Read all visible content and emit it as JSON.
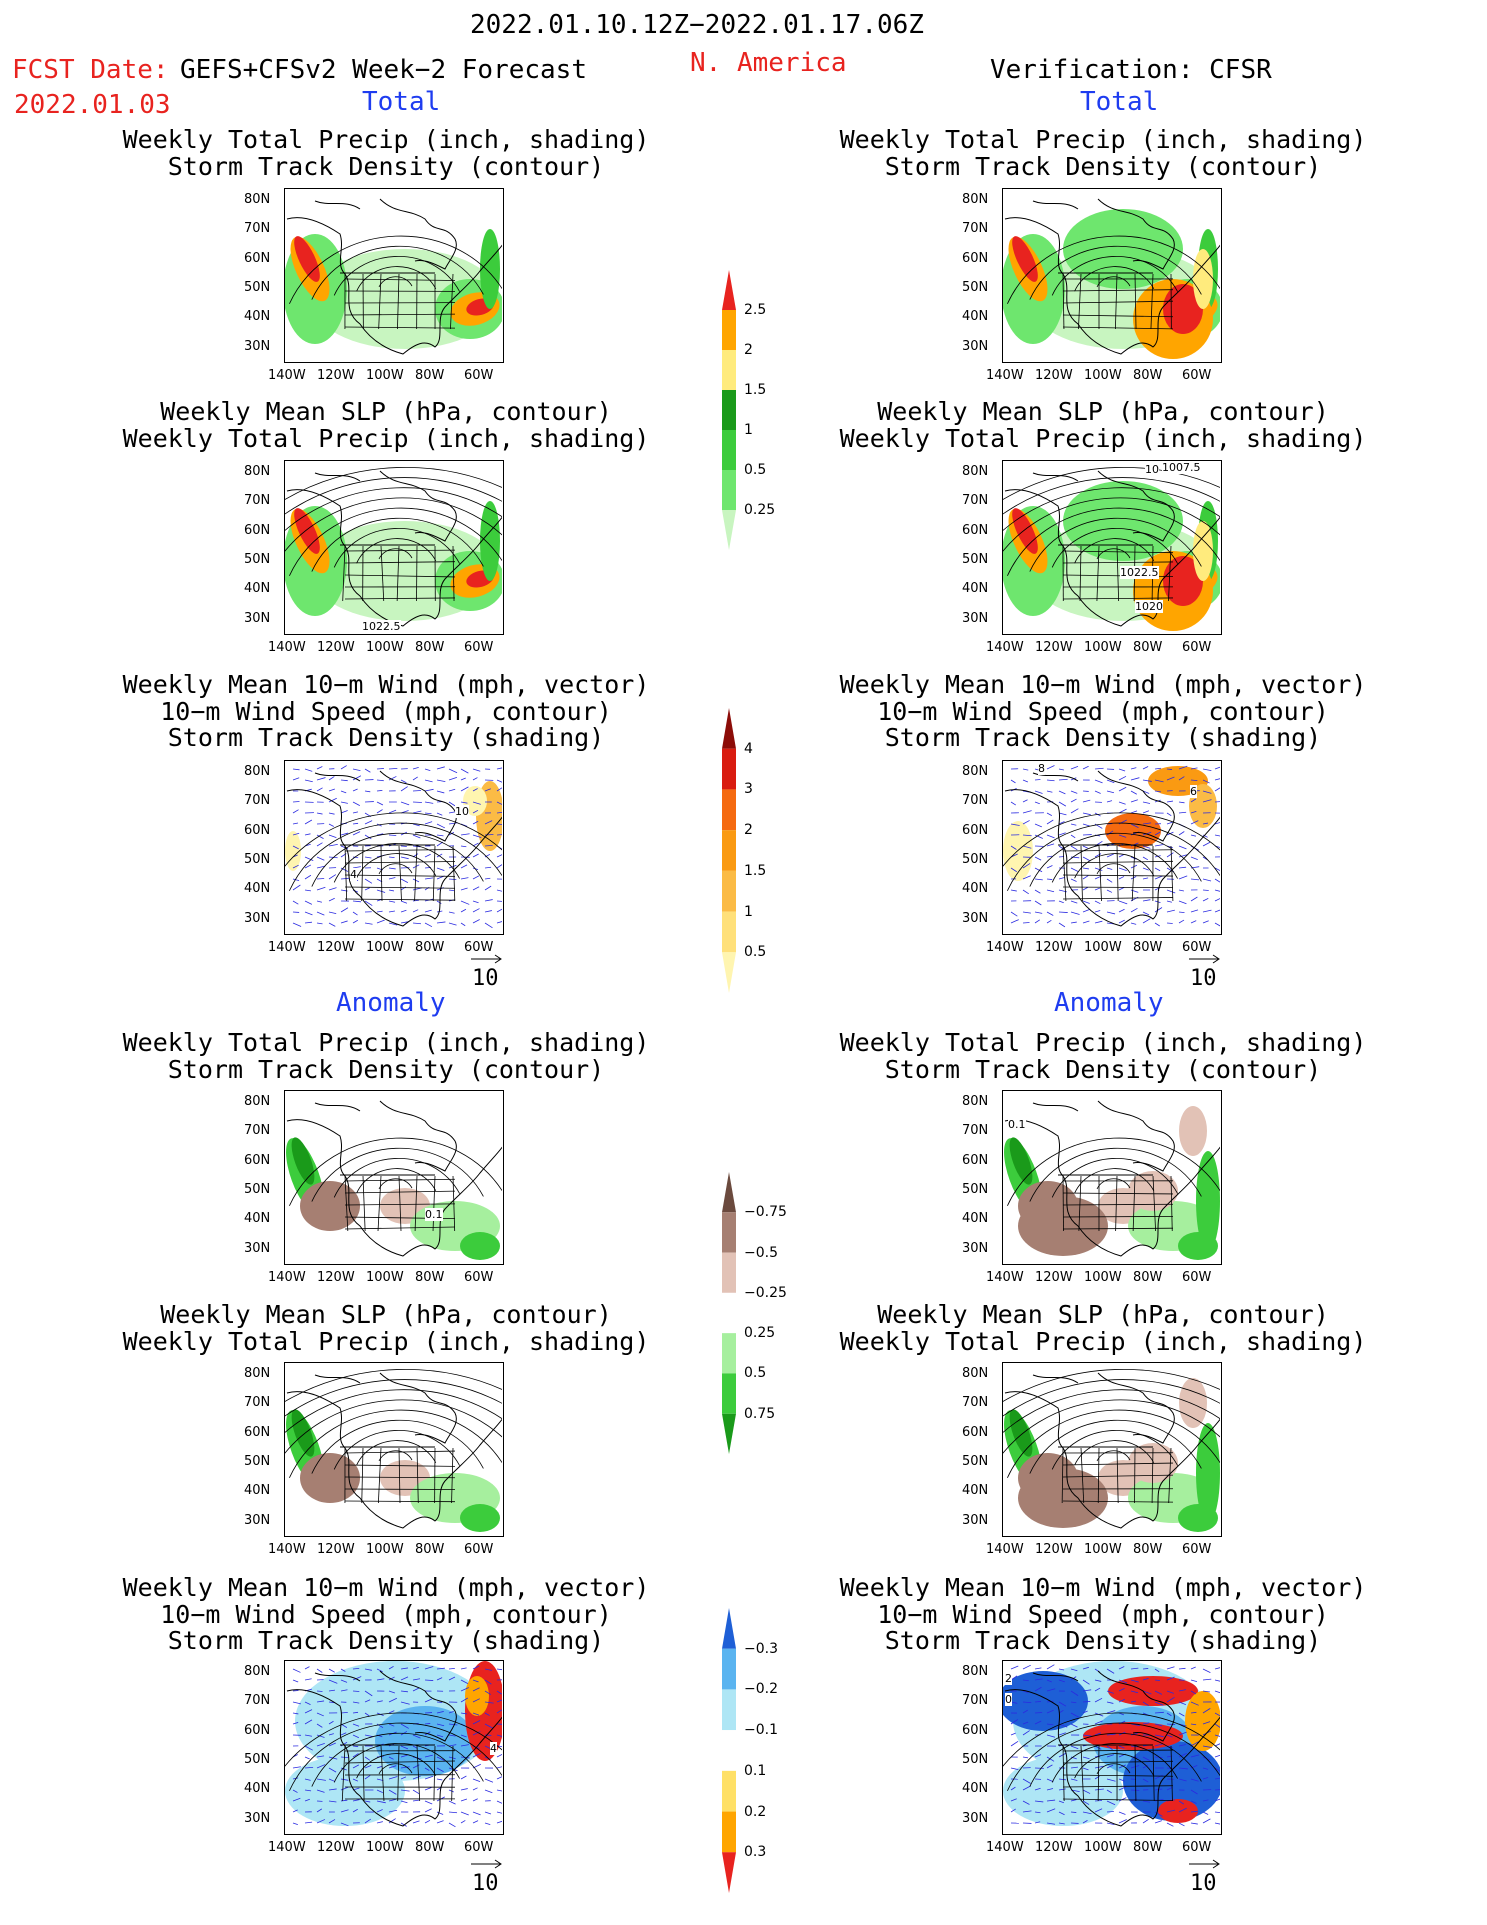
{
  "header": {
    "date_range": "2022.01.10.12Z−2022.01.17.06Z",
    "fcst_label": "FCST Date:",
    "forecast_name": "GEFS+CFSv2 Week−2 Forecast",
    "fcst_date": "2022.01.03",
    "region": "N. America",
    "verification": "Verification: CFSR"
  },
  "section_labels": {
    "total": "Total",
    "anomaly": "Anomaly"
  },
  "panel_titles": {
    "precip_storm": [
      "Weekly Total Precip (inch, shading)",
      "Storm Track Density (contour)"
    ],
    "slp_precip": [
      "Weekly Mean SLP (hPa, contour)",
      "Weekly Total Precip (inch, shading)"
    ],
    "wind_storm": [
      "Weekly Mean 10−m Wind (mph, vector)",
      "10−m Wind Speed (mph, contour)",
      "Storm Track Density (shading)"
    ]
  },
  "axes": {
    "lat_labels": [
      "80N",
      "70N",
      "60N",
      "50N",
      "40N",
      "30N"
    ],
    "lon_labels": [
      "140W",
      "120W",
      "100W",
      "80W",
      "60W"
    ]
  },
  "vector_reference": "10",
  "contour_labels": {
    "fcst_slp": "1022.5",
    "ver_slp_a": "1007.5",
    "ver_slp_b": "1022.5",
    "ver_slp_c": "1020",
    "ver_slp_d": "10",
    "fcst_wind": "10",
    "fcst_wind_b": "4",
    "ver_wind": "8",
    "ver_wind_b": "6",
    "anom_fcst_precip": "0.1",
    "anom_ver_precip": "0.1",
    "anom_fcst_wind": "4",
    "anom_ver_wind_a": "2",
    "anom_ver_wind_b": "0"
  },
  "colorbars": {
    "precip_total": {
      "labels": [
        "0.25",
        "0.5",
        "1",
        "1.5",
        "2",
        "2.5"
      ],
      "colors": [
        "#c8f5c0",
        "#6ee66e",
        "#3ccc3c",
        "#1a9a1a",
        "#ffeb7d",
        "#ffa500",
        "#e8231f"
      ]
    },
    "storm_total": {
      "labels": [
        "0.5",
        "1",
        "1.5",
        "2",
        "3",
        "4"
      ],
      "colors": [
        "#fff5b0",
        "#ffe07a",
        "#fbbb45",
        "#fa9a12",
        "#f56a10",
        "#d91c10",
        "#8c0c08"
      ]
    },
    "precip_anom": {
      "labels": [
        "0.75",
        "0.5",
        "0.25",
        "−0.25",
        "−0.5",
        "−0.75"
      ],
      "colors": [
        "#1a9a1a",
        "#3ccc3c",
        "#a6ef9e",
        "#ffffff",
        "#e2c2b6",
        "#a67f72",
        "#6b4a3e"
      ]
    },
    "storm_anom": {
      "labels": [
        "0.3",
        "0.2",
        "0.1",
        "−0.1",
        "−0.2",
        "−0.3"
      ],
      "colors": [
        "#e8231f",
        "#ffa500",
        "#ffe066",
        "#ffffff",
        "#aee6f5",
        "#5ab4f0",
        "#1e5fd6"
      ]
    }
  }
}
